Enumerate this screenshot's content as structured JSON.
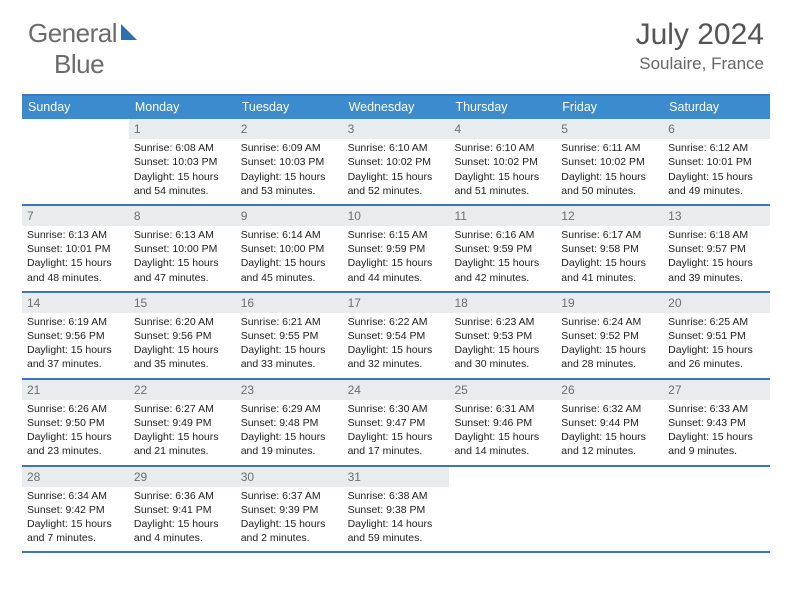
{
  "brand": {
    "part1": "General",
    "part2": "Blue"
  },
  "title": "July 2024",
  "location": "Soulaire, France",
  "colors": {
    "header_bg": "#3b8bcf",
    "border": "#3b78b5",
    "daynum_bg": "#e9ecef",
    "logo_accent": "#2e6fb3"
  },
  "day_headers": [
    "Sunday",
    "Monday",
    "Tuesday",
    "Wednesday",
    "Thursday",
    "Friday",
    "Saturday"
  ],
  "weeks": [
    [
      {
        "n": "",
        "sr": "",
        "ss": "",
        "dl": ""
      },
      {
        "n": "1",
        "sr": "6:08 AM",
        "ss": "10:03 PM",
        "dl": "15 hours and 54 minutes."
      },
      {
        "n": "2",
        "sr": "6:09 AM",
        "ss": "10:03 PM",
        "dl": "15 hours and 53 minutes."
      },
      {
        "n": "3",
        "sr": "6:10 AM",
        "ss": "10:02 PM",
        "dl": "15 hours and 52 minutes."
      },
      {
        "n": "4",
        "sr": "6:10 AM",
        "ss": "10:02 PM",
        "dl": "15 hours and 51 minutes."
      },
      {
        "n": "5",
        "sr": "6:11 AM",
        "ss": "10:02 PM",
        "dl": "15 hours and 50 minutes."
      },
      {
        "n": "6",
        "sr": "6:12 AM",
        "ss": "10:01 PM",
        "dl": "15 hours and 49 minutes."
      }
    ],
    [
      {
        "n": "7",
        "sr": "6:13 AM",
        "ss": "10:01 PM",
        "dl": "15 hours and 48 minutes."
      },
      {
        "n": "8",
        "sr": "6:13 AM",
        "ss": "10:00 PM",
        "dl": "15 hours and 47 minutes."
      },
      {
        "n": "9",
        "sr": "6:14 AM",
        "ss": "10:00 PM",
        "dl": "15 hours and 45 minutes."
      },
      {
        "n": "10",
        "sr": "6:15 AM",
        "ss": "9:59 PM",
        "dl": "15 hours and 44 minutes."
      },
      {
        "n": "11",
        "sr": "6:16 AM",
        "ss": "9:59 PM",
        "dl": "15 hours and 42 minutes."
      },
      {
        "n": "12",
        "sr": "6:17 AM",
        "ss": "9:58 PM",
        "dl": "15 hours and 41 minutes."
      },
      {
        "n": "13",
        "sr": "6:18 AM",
        "ss": "9:57 PM",
        "dl": "15 hours and 39 minutes."
      }
    ],
    [
      {
        "n": "14",
        "sr": "6:19 AM",
        "ss": "9:56 PM",
        "dl": "15 hours and 37 minutes."
      },
      {
        "n": "15",
        "sr": "6:20 AM",
        "ss": "9:56 PM",
        "dl": "15 hours and 35 minutes."
      },
      {
        "n": "16",
        "sr": "6:21 AM",
        "ss": "9:55 PM",
        "dl": "15 hours and 33 minutes."
      },
      {
        "n": "17",
        "sr": "6:22 AM",
        "ss": "9:54 PM",
        "dl": "15 hours and 32 minutes."
      },
      {
        "n": "18",
        "sr": "6:23 AM",
        "ss": "9:53 PM",
        "dl": "15 hours and 30 minutes."
      },
      {
        "n": "19",
        "sr": "6:24 AM",
        "ss": "9:52 PM",
        "dl": "15 hours and 28 minutes."
      },
      {
        "n": "20",
        "sr": "6:25 AM",
        "ss": "9:51 PM",
        "dl": "15 hours and 26 minutes."
      }
    ],
    [
      {
        "n": "21",
        "sr": "6:26 AM",
        "ss": "9:50 PM",
        "dl": "15 hours and 23 minutes."
      },
      {
        "n": "22",
        "sr": "6:27 AM",
        "ss": "9:49 PM",
        "dl": "15 hours and 21 minutes."
      },
      {
        "n": "23",
        "sr": "6:29 AM",
        "ss": "9:48 PM",
        "dl": "15 hours and 19 minutes."
      },
      {
        "n": "24",
        "sr": "6:30 AM",
        "ss": "9:47 PM",
        "dl": "15 hours and 17 minutes."
      },
      {
        "n": "25",
        "sr": "6:31 AM",
        "ss": "9:46 PM",
        "dl": "15 hours and 14 minutes."
      },
      {
        "n": "26",
        "sr": "6:32 AM",
        "ss": "9:44 PM",
        "dl": "15 hours and 12 minutes."
      },
      {
        "n": "27",
        "sr": "6:33 AM",
        "ss": "9:43 PM",
        "dl": "15 hours and 9 minutes."
      }
    ],
    [
      {
        "n": "28",
        "sr": "6:34 AM",
        "ss": "9:42 PM",
        "dl": "15 hours and 7 minutes."
      },
      {
        "n": "29",
        "sr": "6:36 AM",
        "ss": "9:41 PM",
        "dl": "15 hours and 4 minutes."
      },
      {
        "n": "30",
        "sr": "6:37 AM",
        "ss": "9:39 PM",
        "dl": "15 hours and 2 minutes."
      },
      {
        "n": "31",
        "sr": "6:38 AM",
        "ss": "9:38 PM",
        "dl": "14 hours and 59 minutes."
      },
      {
        "n": "",
        "sr": "",
        "ss": "",
        "dl": ""
      },
      {
        "n": "",
        "sr": "",
        "ss": "",
        "dl": ""
      },
      {
        "n": "",
        "sr": "",
        "ss": "",
        "dl": ""
      }
    ]
  ],
  "labels": {
    "sunrise": "Sunrise:",
    "sunset": "Sunset:",
    "daylight": "Daylight:"
  }
}
